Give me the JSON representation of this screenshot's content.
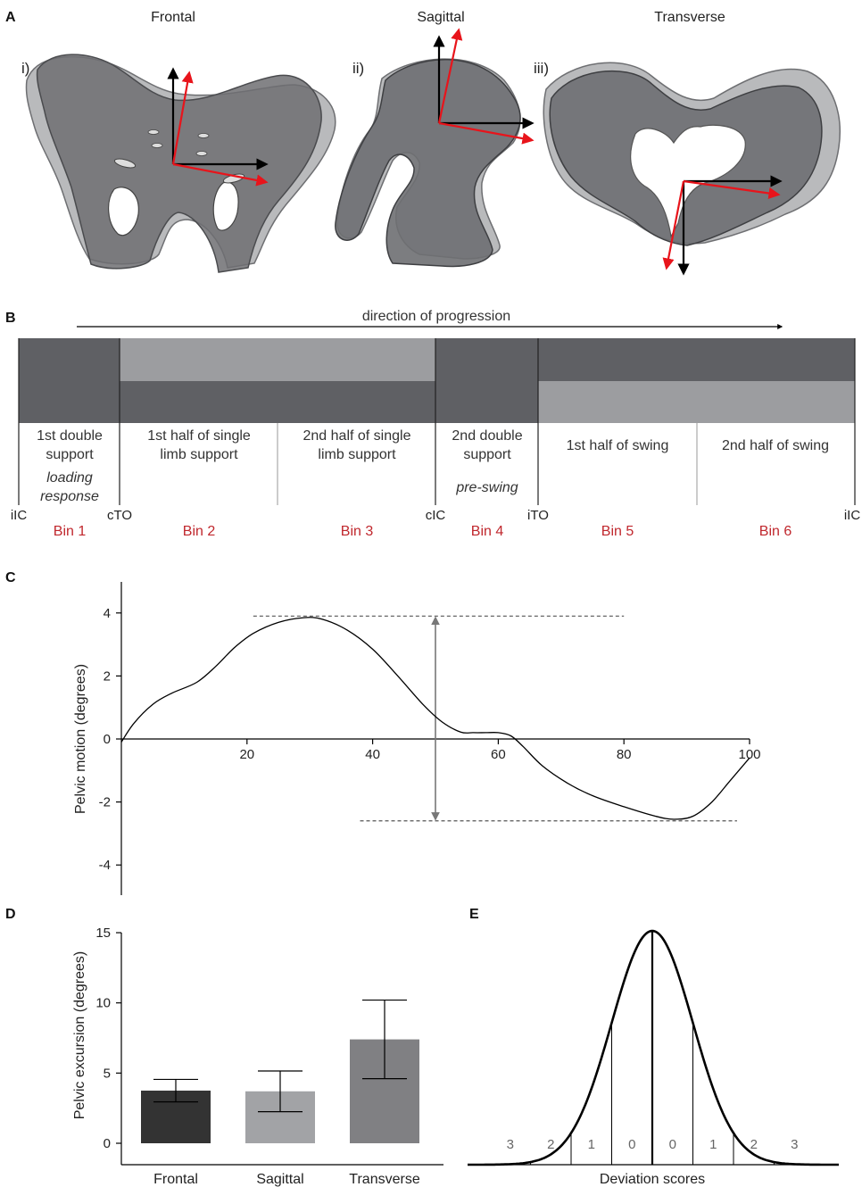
{
  "panel_a": {
    "letter": "A",
    "planes": [
      {
        "title": "Frontal",
        "roman": "i)"
      },
      {
        "title": "Sagittal",
        "roman": "ii)"
      },
      {
        "title": "Transverse",
        "roman": "iii)"
      }
    ],
    "colors": {
      "reference_axes": "#000000",
      "rotated_axes": "#e8141b",
      "pelvis_dark": "#6e6f72",
      "pelvis_light": "#b9babc"
    }
  },
  "panel_b": {
    "letter": "B",
    "direction_label": "direction of progression",
    "phases": [
      {
        "line1": "1st double",
        "line2": "support",
        "italic1": "loading",
        "italic2": "response"
      },
      {
        "line1": "1st half of single",
        "line2": "limb support"
      },
      {
        "line1": "2nd half of single",
        "line2": "limb support"
      },
      {
        "line1": "2nd double",
        "line2": "support",
        "italic1": "pre-swing"
      },
      {
        "line1": "1st half of swing"
      },
      {
        "line1": "2nd half of swing"
      }
    ],
    "events": [
      "iIC",
      "cTO",
      "cIC",
      "iTO",
      "iIC"
    ],
    "bins": [
      "Bin 1",
      "Bin 2",
      "Bin 3",
      "Bin 4",
      "Bin 5",
      "Bin 6"
    ],
    "colors": {
      "dark": "#5f6064",
      "light": "#9c9da0",
      "bin_label": "#c0272d"
    }
  },
  "panel_c": {
    "letter": "C",
    "ylabel": "Pelvic motion (degrees)",
    "x_ticks": [
      "20",
      "40",
      "60",
      "80",
      "100"
    ],
    "y_ticks": [
      "4",
      "2",
      "0",
      "-2",
      "-4"
    ]
  },
  "panel_d": {
    "letter": "D",
    "ylabel": "Pelvic excursion (degrees)",
    "y_ticks": [
      "15",
      "10",
      "5",
      "0"
    ]
  },
  "panel_e": {
    "letter": "E",
    "xlabel": "Deviation scores",
    "scores": [
      "3",
      "2",
      "1",
      "0",
      "0",
      "1",
      "2",
      "3"
    ]
  },
  "chart_data": [
    {
      "type": "line",
      "panel": "C",
      "xlabel": "",
      "ylabel": "Pelvic motion (degrees)",
      "xlim": [
        0,
        100
      ],
      "ylim": [
        -5,
        5
      ],
      "x": [
        0,
        2,
        5,
        8,
        12,
        15,
        18,
        21,
        25,
        29,
        32,
        36,
        40,
        44,
        48,
        51,
        54,
        56,
        58,
        60,
        62,
        64,
        67,
        71,
        75,
        80,
        85,
        88,
        91,
        94,
        97,
        100
      ],
      "y": [
        -0.1,
        0.5,
        1.1,
        1.45,
        1.8,
        2.3,
        2.9,
        3.35,
        3.7,
        3.85,
        3.8,
        3.45,
        2.85,
        2.0,
        1.1,
        0.55,
        0.22,
        0.2,
        0.2,
        0.2,
        0.1,
        -0.25,
        -0.85,
        -1.4,
        -1.8,
        -2.15,
        -2.45,
        -2.55,
        -2.45,
        -2.0,
        -1.3,
        -0.6
      ],
      "reference_lines": {
        "max": 3.9,
        "min": -2.6,
        "max_x_range": [
          21,
          80
        ],
        "min_x_range": [
          38,
          98
        ],
        "excursion_arrow_x": 50
      }
    },
    {
      "type": "bar",
      "panel": "D",
      "ylabel": "Pelvic excursion (degrees)",
      "categories": [
        "Frontal",
        "Sagittal",
        "Transverse"
      ],
      "values": [
        3.75,
        3.7,
        7.4
      ],
      "errors": [
        0.8,
        1.45,
        2.8
      ],
      "colors": [
        "#333333",
        "#a2a3a6",
        "#808083"
      ],
      "ylim": [
        0,
        15
      ]
    },
    {
      "type": "line",
      "panel": "E",
      "xlabel": "Deviation scores",
      "distribution": "normal",
      "sd_lines_at": [
        -3,
        -2,
        -1,
        0,
        1,
        2,
        3
      ],
      "score_labels": [
        "3",
        "2",
        "1",
        "0",
        "0",
        "1",
        "2",
        "3"
      ]
    }
  ]
}
